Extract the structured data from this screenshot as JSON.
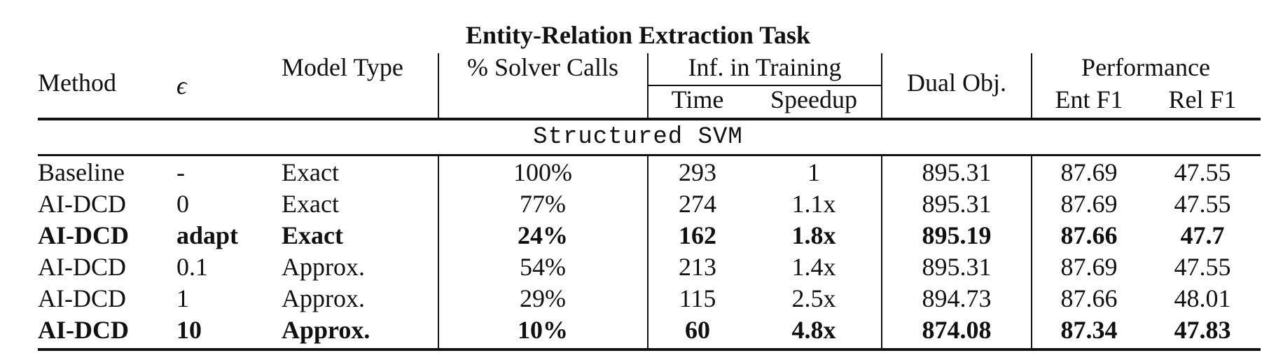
{
  "caption": "Entity-Relation Extraction Task",
  "header": {
    "method": "Method",
    "epsilon": "ϵ",
    "model_type": "Model Type",
    "solver_calls": "% Solver Calls",
    "inf_training": "Inf. in Training",
    "time": "Time",
    "speedup": "Speedup",
    "dual_obj": "Dual Obj.",
    "performance": "Performance",
    "ent_f1": "Ent F1",
    "rel_f1": "Rel F1"
  },
  "section_label": "Structured SVM",
  "rows": [
    {
      "bold": false,
      "cells": [
        "Baseline",
        "-",
        "Exact",
        "100%",
        "293",
        "1",
        "895.31",
        "87.69",
        "47.55"
      ]
    },
    {
      "bold": false,
      "cells": [
        "AI-DCD",
        "0",
        "Exact",
        "77%",
        "274",
        "1.1x",
        "895.31",
        "87.69",
        "47.55"
      ]
    },
    {
      "bold": true,
      "cells": [
        "AI-DCD",
        "adapt",
        "Exact",
        "24%",
        "162",
        "1.8x",
        "895.19",
        "87.66",
        "47.7"
      ]
    },
    {
      "bold": false,
      "cells": [
        "AI-DCD",
        "0.1",
        "Approx.",
        "54%",
        "213",
        "1.4x",
        "895.31",
        "87.69",
        "47.55"
      ]
    },
    {
      "bold": false,
      "cells": [
        "AI-DCD",
        "1",
        "Approx.",
        "29%",
        "115",
        "2.5x",
        "894.73",
        "87.66",
        "48.01"
      ]
    },
    {
      "bold": true,
      "cells": [
        "AI-DCD",
        "10",
        "Approx.",
        "10%",
        "60",
        "4.8x",
        "874.08",
        "87.34",
        "47.83"
      ]
    }
  ]
}
